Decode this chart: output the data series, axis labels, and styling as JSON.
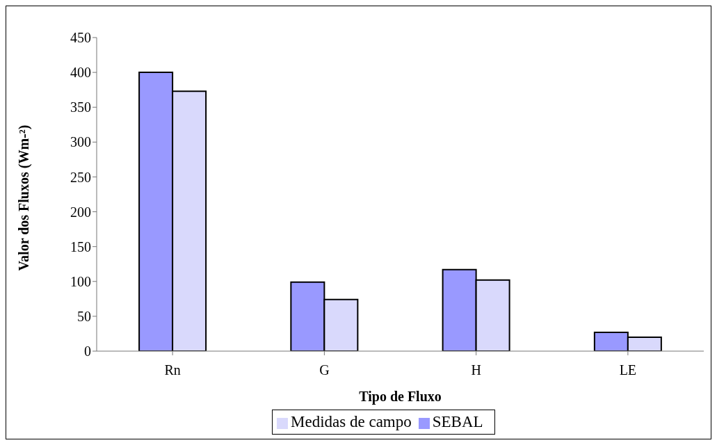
{
  "chart_data": {
    "type": "bar",
    "xlabel": "Tipo de Fluxo",
    "ylabel": "Valor dos Fluxos (Wm-²)",
    "categories": [
      "Rn",
      "G",
      "H",
      "LE"
    ],
    "series": [
      {
        "name": "SEBAL",
        "color": "#9999ff",
        "values": [
          400,
          99,
          117,
          27
        ]
      },
      {
        "name": "Medidas de campo",
        "color": "#d9d9fc",
        "values": [
          373,
          74,
          102,
          20
        ]
      }
    ],
    "ylim": [
      0,
      450
    ],
    "yticks": [
      0,
      50,
      100,
      150,
      200,
      250,
      300,
      350,
      400,
      450
    ],
    "grid": false,
    "legend": "bottom"
  }
}
